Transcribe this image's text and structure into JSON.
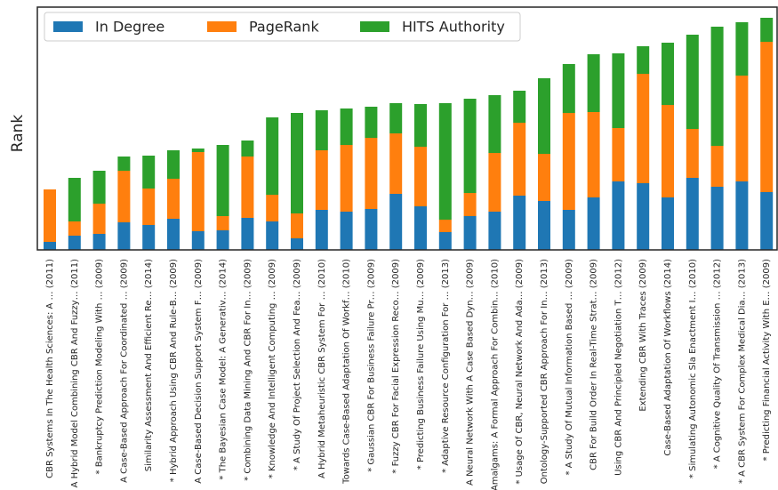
{
  "chart_data": {
    "type": "stacked_bar",
    "ylabel": "Rank",
    "categories": [
      "CBR Systems In The Health Sciences: A … (2011)",
      "A Hybrid Model Combining CBR And Fuzzy… (2011)",
      "* Bankruptcy Prediction Modeling With … (2009)",
      "A Case-Based Approach For Coordinated … (2009)",
      "Similarity Assessment And Efficient Re… (2014)",
      "* Hybrid Approach Using CBR And Rule-B… (2009)",
      "A Case-Based Decision Support System F… (2009)",
      "* The Bayesian Case Model: A Generativ… (2014)",
      "* Combining Data Mining And CBR For In… (2009)",
      "* Knowledge And Intelligent Computing … (2009)",
      "* A Study Of Project Selection And Fea… (2009)",
      "A Hybrid Metaheuristic CBR System For … (2010)",
      "Towards Case-Based Adaptation Of Workf… (2010)",
      "* Gaussian CBR For Business Failure Pr… (2009)",
      "* Fuzzy CBR For Facial Expression Reco… (2009)",
      "* Predicting Business Failure Using Mu… (2009)",
      "* Adaptive Resource Configuration For … (2013)",
      "A Neural Network With A Case Based Dyn… (2009)",
      "Amalgams: A Formal Approach For Combin… (2010)",
      "* Usage Of CBR, Neural Network And Ada… (2009)",
      "Ontology-Supported CBR Approach For In… (2013)",
      "* A Study Of Mutual Information Based … (2009)",
      "CBR For Build Order In Real-Time Strat… (2009)",
      "Using CBR And Principled Negotiation T… (2012)",
      "Extending CBR With Traces (2009)",
      "Case-Based Adaptation Of Workflows (2014)",
      "* Simulating Autonomic Sla Enactment I… (2010)",
      "* A Cognitive Quality Of Transmission … (2012)",
      "* A CBR System For Complex Medical Dia… (2013)",
      "* Predicting Financial Activity With E… (2009)"
    ],
    "series": [
      {
        "name": "In Degree",
        "color": "#1f77b4",
        "values": [
          9,
          16,
          18,
          31,
          28,
          35,
          21,
          22,
          36,
          32,
          13,
          45,
          43,
          46,
          63,
          49,
          20,
          38,
          43,
          61,
          55,
          45,
          59,
          77,
          75,
          59,
          81,
          71,
          77,
          65
        ]
      },
      {
        "name": "PageRank",
        "color": "#ff7f0e",
        "values": [
          59,
          16,
          34,
          58,
          41,
          45,
          89,
          16,
          69,
          30,
          28,
          67,
          75,
          80,
          68,
          67,
          14,
          26,
          66,
          82,
          53,
          109,
          96,
          60,
          123,
          104,
          55,
          46,
          119,
          169
        ]
      },
      {
        "name": "HITS Authority",
        "color": "#2ca02c",
        "values": [
          0,
          49,
          37,
          16,
          37,
          32,
          4,
          80,
          18,
          87,
          113,
          45,
          41,
          35,
          34,
          48,
          131,
          106,
          65,
          36,
          85,
          55,
          65,
          84,
          31,
          70,
          106,
          134,
          60,
          27
        ]
      }
    ],
    "ylim": [
      0,
      273
    ],
    "legend": "upper left"
  }
}
